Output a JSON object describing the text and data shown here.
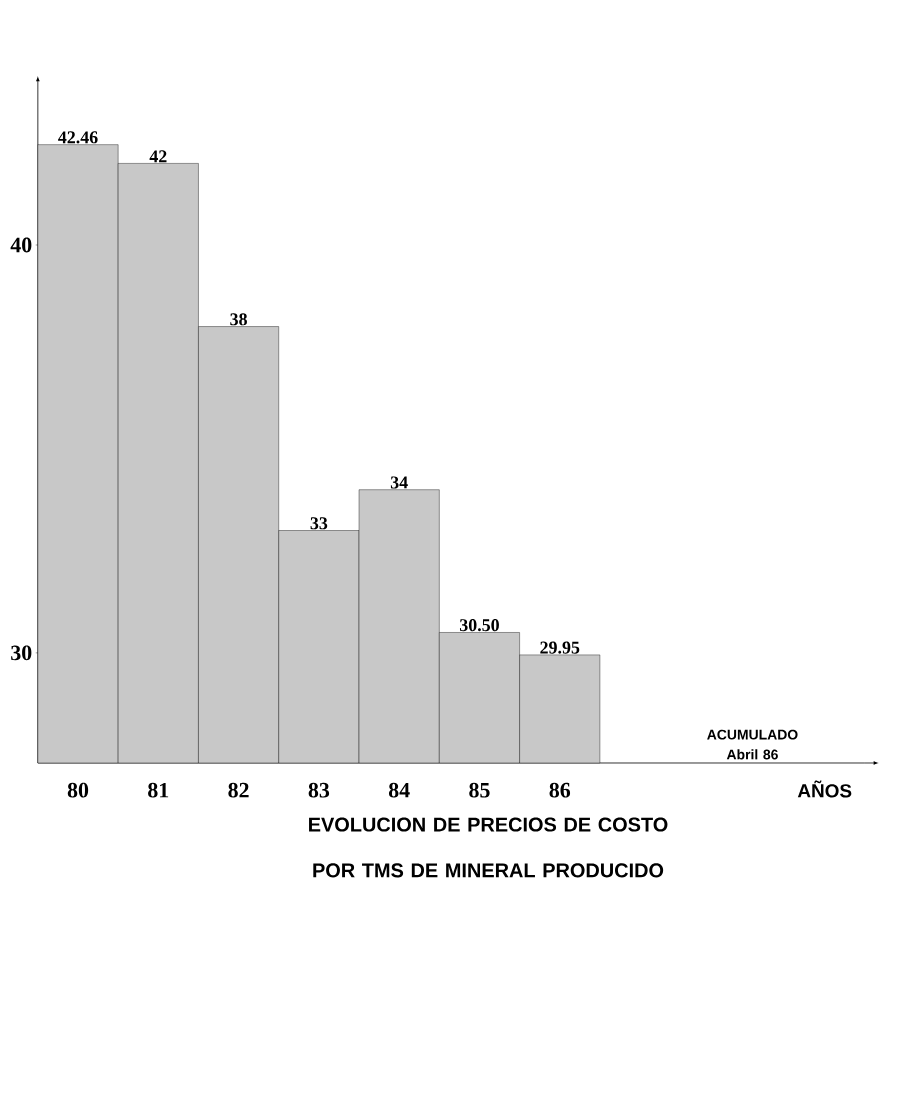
{
  "chart_data": {
    "type": "bar",
    "title": "EVOLUCION DE PRECIOS DE COSTO POR TMS DE MINERAL PRODUCIDO",
    "categories": [
      "80",
      "81",
      "82",
      "83",
      "84",
      "85",
      "86"
    ],
    "values": [
      42.46,
      42,
      38,
      33,
      34,
      30.5,
      29.95
    ],
    "value_labels": [
      "42.46",
      "42",
      "38",
      "33",
      "34",
      "30.50",
      "29.95"
    ],
    "color": "#c8c8c8",
    "ylim": [
      27.3,
      43.8
    ],
    "yticks": [
      30,
      40
    ],
    "annotations": [
      "ACUMULADO Abril 86",
      "AÑOS"
    ]
  }
}
